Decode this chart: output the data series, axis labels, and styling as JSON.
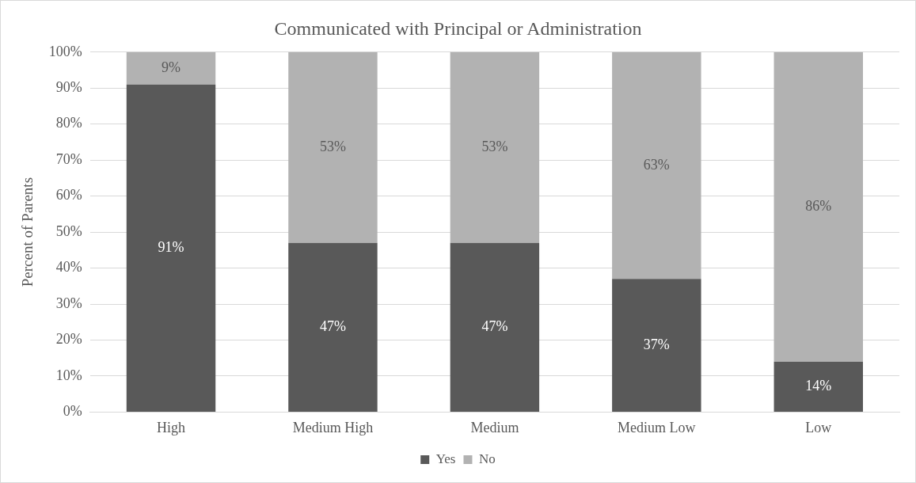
{
  "chart_data": {
    "type": "bar",
    "title": "Communicated with Principal or Administration",
    "ylabel": "Percent of Parents",
    "categories": [
      "High",
      "Medium High",
      "Medium",
      "Medium Low",
      "Low"
    ],
    "series": [
      {
        "name": "Yes",
        "color": "#595959",
        "values": [
          91,
          47,
          47,
          37,
          14
        ],
        "value_labels": [
          "91%",
          "47%",
          "47%",
          "37%",
          "14%"
        ]
      },
      {
        "name": "No",
        "color": "#b2b2b2",
        "values": [
          9,
          53,
          53,
          63,
          86
        ],
        "value_labels": [
          "9%",
          "53%",
          "53%",
          "63%",
          "86%"
        ]
      }
    ],
    "stacked": true,
    "ylim": [
      0,
      100
    ],
    "yticks": [
      {
        "value": 0,
        "label": "0%"
      },
      {
        "value": 10,
        "label": "10%"
      },
      {
        "value": 20,
        "label": "20%"
      },
      {
        "value": 30,
        "label": "30%"
      },
      {
        "value": 40,
        "label": "40%"
      },
      {
        "value": 50,
        "label": "50%"
      },
      {
        "value": 60,
        "label": "60%"
      },
      {
        "value": 70,
        "label": "70%"
      },
      {
        "value": 80,
        "label": "80%"
      },
      {
        "value": 90,
        "label": "90%"
      },
      {
        "value": 100,
        "label": "100%"
      }
    ],
    "grid": "y",
    "legend": "bottom"
  }
}
